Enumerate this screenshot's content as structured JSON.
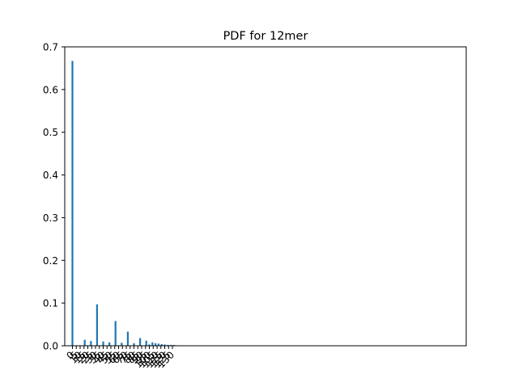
{
  "chart_data": {
    "type": "bar",
    "title": "PDF for 12mer",
    "xlabel": "",
    "ylabel": "",
    "ylim": [
      0,
      0.7
    ],
    "xlim": [
      -10,
      512
    ],
    "yticks": [
      0.0,
      0.1,
      0.2,
      0.3,
      0.4,
      0.5,
      0.6,
      0.7
    ],
    "ytick_labels": [
      "0.0",
      "0.1",
      "0.2",
      "0.3",
      "0.4",
      "0.5",
      "0.6",
      "0.7"
    ],
    "xticks": [
      0,
      5,
      10,
      15,
      20,
      25,
      30,
      35,
      40,
      45,
      50,
      55,
      60,
      65,
      70,
      75,
      80,
      85,
      90,
      95,
      100,
      105,
      110,
      115,
      120,
      125,
      130
    ],
    "xtick_labels": [
      "0",
      "5",
      "10",
      "15",
      "20",
      "25",
      "30",
      "35",
      "40",
      "45",
      "50",
      "55",
      "60",
      "65",
      "70",
      "75",
      "80",
      "85",
      "90",
      "95",
      "100",
      "105",
      "110",
      "115",
      "120",
      "125",
      "130"
    ],
    "xtick_rotation": 45,
    "bar_color": "#1f77b4",
    "series": [
      {
        "x": [
          0,
          16,
          24,
          32,
          40,
          48,
          56,
          64,
          72,
          80,
          88,
          96,
          100,
          104,
          108,
          112,
          116,
          120,
          124,
          128,
          132,
          136,
          140,
          144
        ],
        "values": [
          0.667,
          0.014,
          0.011,
          0.097,
          0.01,
          0.008,
          0.058,
          0.007,
          0.033,
          0.006,
          0.018,
          0.012,
          0.003,
          0.008,
          0.006,
          0.005,
          0.004,
          0.003,
          0.002,
          0.002,
          0.002,
          0.001,
          0.001,
          0.001
        ]
      }
    ],
    "grid": false,
    "legend": "none"
  }
}
